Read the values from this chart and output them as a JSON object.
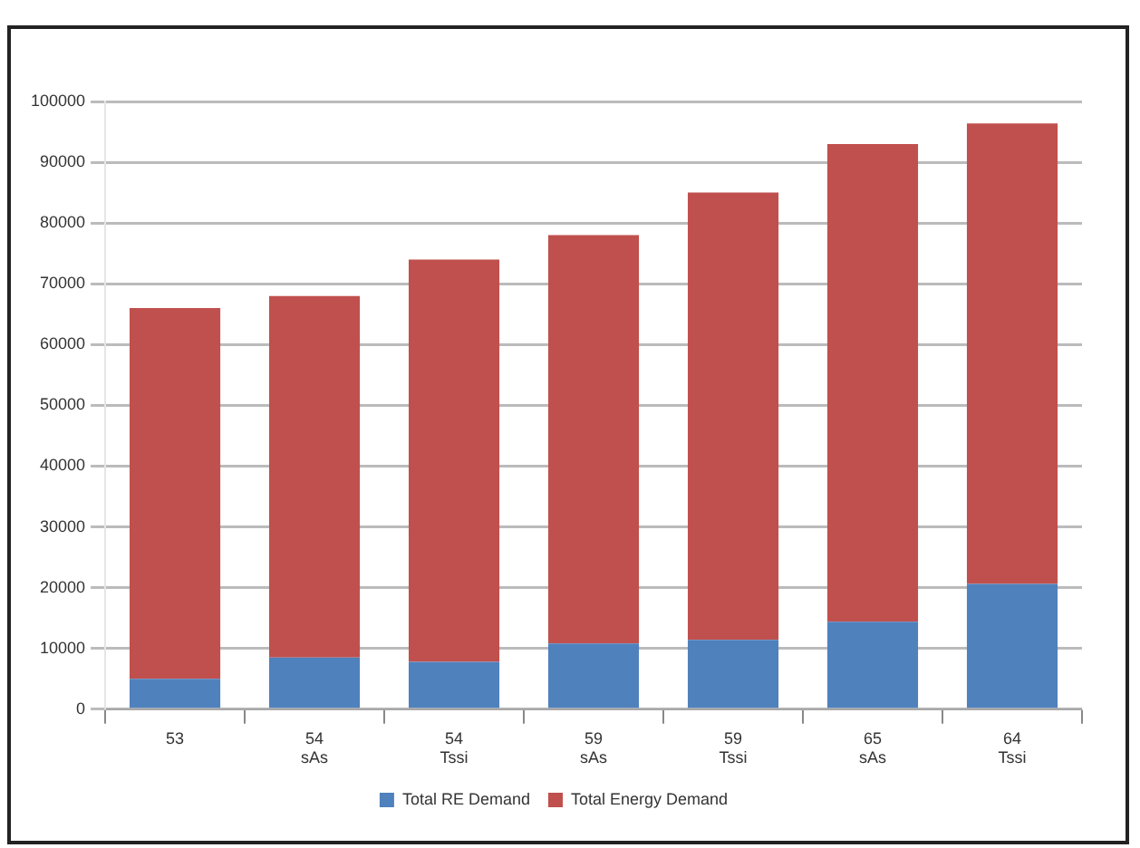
{
  "chart_data": {
    "type": "bar",
    "stacked": true,
    "categories": [
      "53",
      "54\nsAs",
      "54\nTssi",
      "59\nsAs",
      "59\nTssi",
      "65\nsAs",
      "64\nTssi"
    ],
    "series": [
      {
        "name": "Total RE Demand",
        "color": "#4f81bd",
        "values": [
          5000,
          8500,
          7800,
          10800,
          11400,
          14400,
          20600
        ]
      },
      {
        "name": "Total Energy Demand",
        "color": "#c0504d",
        "values": [
          61000,
          59500,
          66200,
          67200,
          73600,
          78600,
          75800
        ]
      }
    ],
    "ylim": [
      0,
      100000
    ],
    "yticks": [
      0,
      10000,
      20000,
      30000,
      40000,
      50000,
      60000,
      70000,
      80000,
      90000,
      100000
    ],
    "grid": "y",
    "legend": "bottom"
  }
}
